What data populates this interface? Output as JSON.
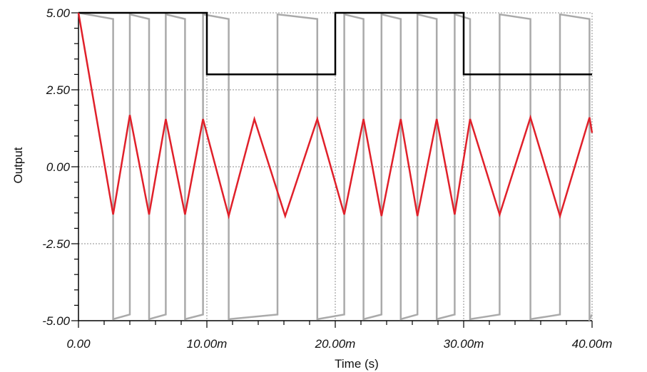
{
  "chart_data": {
    "type": "line",
    "xlabel": "Time (s)",
    "ylabel": "Output",
    "xlim": [
      0,
      0.04
    ],
    "ylim": [
      -5,
      5
    ],
    "x_ticks": [
      0,
      0.01,
      0.02,
      0.03,
      0.04
    ],
    "x_tick_labels": [
      "0.00",
      "10.00m",
      "20.00m",
      "30.00m",
      "40.00m"
    ],
    "y_ticks": [
      5,
      2.5,
      0,
      -2.5,
      -5
    ],
    "y_tick_labels": [
      "5.00",
      "2.50",
      "0.00",
      "-2.50",
      "-5.00"
    ],
    "grid": true,
    "series": [
      {
        "color": "#aaaaaa",
        "x": [
          0,
          0.0027,
          0.0027,
          0.004,
          0.004,
          0.0055,
          0.0055,
          0.0068,
          0.0068,
          0.0083,
          0.0083,
          0.0097,
          0.0097,
          0.0117,
          0.0117,
          0.0155,
          0.0155,
          0.0186,
          0.0186,
          0.0207,
          0.0207,
          0.0222,
          0.0222,
          0.0236,
          0.0236,
          0.0251,
          0.0251,
          0.0264,
          0.0264,
          0.0279,
          0.0279,
          0.0293,
          0.0293,
          0.0305,
          0.0305,
          0.0328,
          0.0328,
          0.0352,
          0.0352,
          0.0375,
          0.0375,
          0.0398,
          0.0398,
          0.04
        ],
        "values": [
          5,
          4.8,
          -4.95,
          -4.8,
          4.95,
          4.8,
          -4.95,
          -4.8,
          4.95,
          4.8,
          -4.95,
          -4.8,
          4.95,
          4.8,
          -4.95,
          -4.8,
          4.95,
          4.8,
          -4.95,
          -4.8,
          4.95,
          4.8,
          -4.95,
          -4.8,
          4.95,
          4.8,
          -4.95,
          -4.8,
          4.95,
          4.8,
          -4.95,
          -4.8,
          4.95,
          4.8,
          -4.95,
          -4.8,
          4.95,
          4.8,
          -4.95,
          -4.8,
          4.95,
          4.8,
          -4.95,
          -4.8
        ]
      },
      {
        "color": "#000000",
        "x": [
          0,
          0.01,
          0.01,
          0.02,
          0.02,
          0.03,
          0.03,
          0.04
        ],
        "values": [
          5,
          5,
          3,
          3,
          5,
          5,
          3,
          3
        ]
      },
      {
        "color": "#e0202a",
        "x": [
          0,
          0.0027,
          0.004,
          0.0055,
          0.0068,
          0.0083,
          0.0097,
          0.0117,
          0.0137,
          0.0161,
          0.0186,
          0.0207,
          0.0222,
          0.0236,
          0.0251,
          0.0264,
          0.0279,
          0.0293,
          0.0305,
          0.0328,
          0.0352,
          0.0375,
          0.0398,
          0.04
        ],
        "values": [
          5,
          -1.55,
          1.68,
          -1.55,
          1.55,
          -1.55,
          1.55,
          -1.6,
          1.55,
          -1.6,
          1.55,
          -1.55,
          1.55,
          -1.6,
          1.55,
          -1.6,
          1.55,
          -1.55,
          1.55,
          -1.55,
          1.6,
          -1.6,
          1.6,
          1.1
        ]
      }
    ]
  }
}
